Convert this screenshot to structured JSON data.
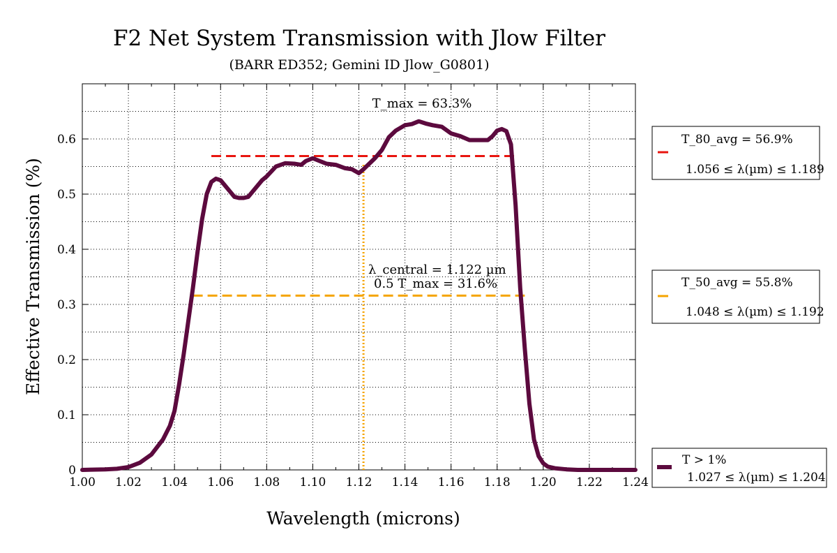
{
  "chart_data": {
    "type": "line",
    "title": "F2 Net System Transmission with Jlow Filter",
    "subtitle": "(BARR ED352; Gemini ID Jlow_G0801)",
    "xlabel": "Wavelength (microns)",
    "ylabel": "Effective Transmission (%)",
    "xlim": [
      1.0,
      1.24
    ],
    "ylim": [
      0,
      0.7
    ],
    "xticks": [
      1.0,
      1.02,
      1.04,
      1.06,
      1.08,
      1.1,
      1.12,
      1.14,
      1.16,
      1.18,
      1.2,
      1.22,
      1.24
    ],
    "xtick_labels": [
      "1.00",
      "1.02",
      "1.04",
      "1.06",
      "1.08",
      "1.10",
      "1.12",
      "1.14",
      "1.16",
      "1.18",
      "1.20",
      "1.22",
      "1.24"
    ],
    "yticks": [
      0,
      0.1,
      0.2,
      0.3,
      0.4,
      0.5,
      0.6
    ],
    "ytick_labels": [
      "0",
      "0.1",
      "0.2",
      "0.3",
      "0.4",
      "0.5",
      "0.6"
    ],
    "grid": true,
    "legend_placement": "outside-right",
    "series": [
      {
        "name": "T > 1%",
        "color": "#5c0a3e",
        "x": [
          1.0,
          1.01,
          1.015,
          1.02,
          1.025,
          1.03,
          1.035,
          1.038,
          1.04,
          1.042,
          1.044,
          1.046,
          1.048,
          1.05,
          1.052,
          1.054,
          1.056,
          1.058,
          1.06,
          1.062,
          1.064,
          1.066,
          1.068,
          1.07,
          1.072,
          1.075,
          1.078,
          1.08,
          1.084,
          1.088,
          1.092,
          1.095,
          1.097,
          1.1,
          1.103,
          1.106,
          1.11,
          1.114,
          1.117,
          1.12,
          1.122,
          1.124,
          1.127,
          1.13,
          1.133,
          1.136,
          1.14,
          1.143,
          1.146,
          1.149,
          1.152,
          1.156,
          1.16,
          1.164,
          1.168,
          1.172,
          1.176,
          1.178,
          1.18,
          1.182,
          1.184,
          1.186,
          1.188,
          1.19,
          1.192,
          1.194,
          1.196,
          1.198,
          1.2,
          1.202,
          1.205,
          1.21,
          1.215,
          1.22,
          1.24
        ],
        "y": [
          0,
          0.001,
          0.002,
          0.005,
          0.013,
          0.028,
          0.055,
          0.08,
          0.107,
          0.155,
          0.21,
          0.27,
          0.33,
          0.395,
          0.455,
          0.5,
          0.522,
          0.528,
          0.525,
          0.515,
          0.505,
          0.495,
          0.493,
          0.493,
          0.495,
          0.51,
          0.525,
          0.532,
          0.55,
          0.556,
          0.555,
          0.553,
          0.56,
          0.565,
          0.56,
          0.555,
          0.553,
          0.547,
          0.545,
          0.538,
          0.545,
          0.553,
          0.565,
          0.58,
          0.603,
          0.615,
          0.625,
          0.627,
          0.632,
          0.628,
          0.625,
          0.622,
          0.61,
          0.605,
          0.598,
          0.598,
          0.598,
          0.605,
          0.615,
          0.618,
          0.614,
          0.59,
          0.48,
          0.33,
          0.22,
          0.12,
          0.055,
          0.025,
          0.012,
          0.006,
          0.003,
          0.001,
          0.0,
          0.0,
          0.0
        ]
      }
    ],
    "reference_lines": [
      {
        "name": "T_80_avg",
        "orientation": "horizontal",
        "y": 0.569,
        "x_range": [
          1.056,
          1.189
        ],
        "color": "#e8150f",
        "style": "dashed"
      },
      {
        "name": "T_50_avg",
        "orientation": "horizontal",
        "y": 0.316,
        "x_range": [
          1.048,
          1.192
        ],
        "color": "#f5a400",
        "style": "dashed"
      },
      {
        "name": "lambda_central",
        "orientation": "vertical",
        "x": 1.122,
        "y_range": [
          0,
          0.557
        ],
        "color": "#f5a400",
        "style": "dotted"
      }
    ],
    "annotations": {
      "tmax": "T_max = 63.3%",
      "lambda_central": "λ_central = 1.122 µm",
      "half_tmax": "0.5 T_max = 31.6%"
    },
    "legend": {
      "t80_line1": "T_80_avg = 56.9%",
      "t80_line2": "1.056 ≤ λ(µm) ≤ 1.189",
      "t50_line1": "T_50_avg = 55.8%",
      "t50_line2": "1.048 ≤ λ(µm) ≤ 1.192",
      "t1_line1": "T > 1%",
      "t1_line2": "1.027 ≤ λ(µm) ≤ 1.204"
    }
  }
}
